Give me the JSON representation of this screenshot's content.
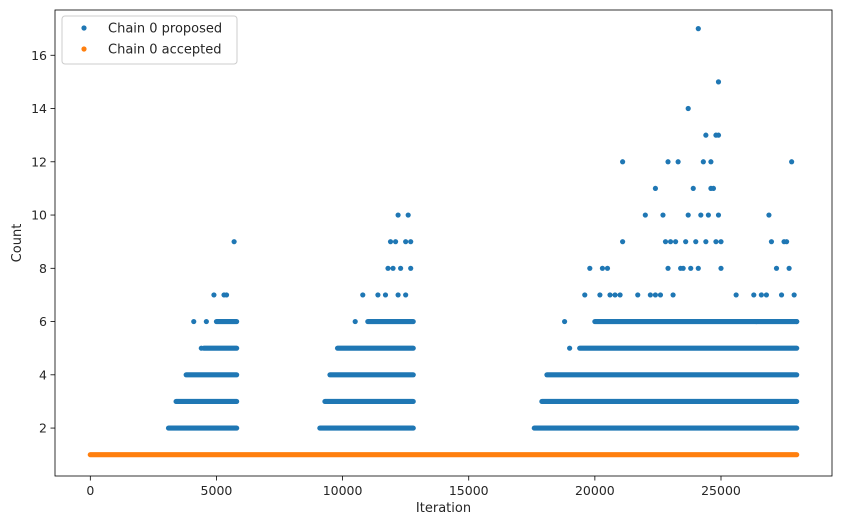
{
  "chart_data": {
    "type": "scatter",
    "title": "",
    "xlabel": "Iteration",
    "ylabel": "Count",
    "xlim": [
      -1400,
      29400
    ],
    "ylim": [
      0.2,
      17.7
    ],
    "xticks": [
      0,
      5000,
      10000,
      15000,
      20000,
      25000
    ],
    "yticks": [
      2,
      4,
      6,
      8,
      10,
      12,
      14,
      16
    ],
    "grid": false,
    "legend_position": "top-left",
    "series": [
      {
        "name": "Chain 0 proposed",
        "color": "#1f77b4",
        "bands": [
          {
            "y": 2,
            "x_ranges": [
              [
                3100,
                5800
              ],
              [
                9100,
                12800
              ],
              [
                17600,
                28000
              ]
            ]
          },
          {
            "y": 3,
            "x_ranges": [
              [
                3400,
                5800
              ],
              [
                9300,
                12800
              ],
              [
                17900,
                28000
              ]
            ]
          },
          {
            "y": 4,
            "x_ranges": [
              [
                3800,
                5800
              ],
              [
                9500,
                12800
              ],
              [
                18100,
                28000
              ]
            ]
          },
          {
            "y": 5,
            "x_ranges": [
              [
                4500,
                5800
              ],
              [
                9800,
                12800
              ],
              [
                19400,
                28000
              ]
            ]
          },
          {
            "y": 6,
            "x_ranges": [
              [
                5000,
                5800
              ],
              [
                11000,
                12800
              ],
              [
                20000,
                28000
              ]
            ]
          }
        ],
        "points": [
          [
            4100,
            6
          ],
          [
            4600,
            6
          ],
          [
            4400,
            5
          ],
          [
            4900,
            7
          ],
          [
            5300,
            7
          ],
          [
            5400,
            7
          ],
          [
            5700,
            9
          ],
          [
            10500,
            6
          ],
          [
            10800,
            7
          ],
          [
            11400,
            7
          ],
          [
            11800,
            8
          ],
          [
            11900,
            9
          ],
          [
            12000,
            8
          ],
          [
            12100,
            9
          ],
          [
            12200,
            10
          ],
          [
            12300,
            8
          ],
          [
            12500,
            9
          ],
          [
            12600,
            10
          ],
          [
            12700,
            9
          ],
          [
            12700,
            8
          ],
          [
            12200,
            7
          ],
          [
            12500,
            7
          ],
          [
            11700,
            7
          ],
          [
            18800,
            6
          ],
          [
            19000,
            5
          ],
          [
            19600,
            7
          ],
          [
            19800,
            8
          ],
          [
            20200,
            7
          ],
          [
            20300,
            8
          ],
          [
            20500,
            8
          ],
          [
            20600,
            7
          ],
          [
            20800,
            7
          ],
          [
            21000,
            7
          ],
          [
            21100,
            12
          ],
          [
            21100,
            9
          ],
          [
            21700,
            7
          ],
          [
            22000,
            10
          ],
          [
            22200,
            7
          ],
          [
            22400,
            11
          ],
          [
            22400,
            7
          ],
          [
            22600,
            7
          ],
          [
            22700,
            10
          ],
          [
            22800,
            9
          ],
          [
            22900,
            12
          ],
          [
            22900,
            8
          ],
          [
            23000,
            9
          ],
          [
            23100,
            7
          ],
          [
            23200,
            9
          ],
          [
            23300,
            12
          ],
          [
            23400,
            8
          ],
          [
            23500,
            8
          ],
          [
            23600,
            9
          ],
          [
            23700,
            14
          ],
          [
            23700,
            10
          ],
          [
            23800,
            8
          ],
          [
            23900,
            11
          ],
          [
            24000,
            9
          ],
          [
            24100,
            17
          ],
          [
            24100,
            8
          ],
          [
            24200,
            10
          ],
          [
            24300,
            12
          ],
          [
            24400,
            13
          ],
          [
            24400,
            9
          ],
          [
            24500,
            10
          ],
          [
            24600,
            12
          ],
          [
            24600,
            11
          ],
          [
            24700,
            11
          ],
          [
            24800,
            13
          ],
          [
            24800,
            9
          ],
          [
            24900,
            15
          ],
          [
            24900,
            13
          ],
          [
            24900,
            10
          ],
          [
            25000,
            9
          ],
          [
            25000,
            8
          ],
          [
            25600,
            7
          ],
          [
            26300,
            7
          ],
          [
            26400,
            6
          ],
          [
            26600,
            7
          ],
          [
            26800,
            7
          ],
          [
            26900,
            10
          ],
          [
            27000,
            9
          ],
          [
            27200,
            8
          ],
          [
            27400,
            7
          ],
          [
            27500,
            9
          ],
          [
            27600,
            9
          ],
          [
            27700,
            8
          ],
          [
            27800,
            12
          ],
          [
            27900,
            7
          ],
          [
            28000,
            6
          ]
        ]
      },
      {
        "name": "Chain 0 accepted",
        "color": "#ff7f0e",
        "bands": [
          {
            "y": 1,
            "x_ranges": [
              [
                0,
                28000
              ]
            ]
          }
        ],
        "points": []
      }
    ]
  }
}
